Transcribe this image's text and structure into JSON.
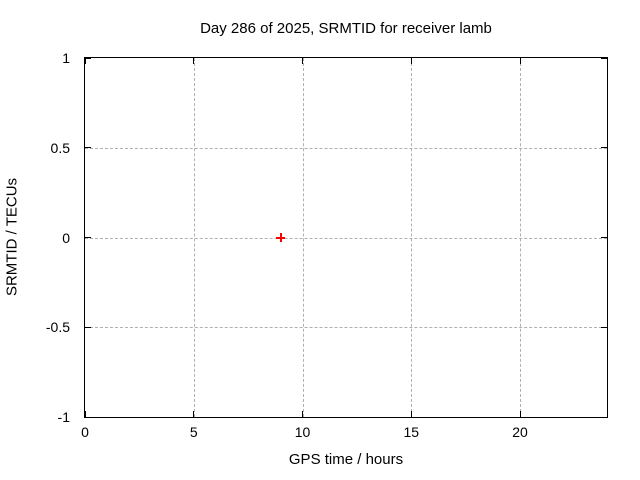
{
  "chart_data": {
    "type": "scatter",
    "title": "Day 286 of 2025, SRMTID for receiver lamb",
    "xlabel": "GPS time / hours",
    "ylabel": "SRMTID / TECUs",
    "xlim": [
      0,
      24
    ],
    "ylim": [
      -1,
      1
    ],
    "xtick_values": [
      0,
      5,
      10,
      15,
      20
    ],
    "xtick_labels": [
      "0",
      "5",
      "10",
      "15",
      "20"
    ],
    "ytick_values": [
      -1,
      -0.5,
      0,
      0.5,
      1
    ],
    "ytick_labels": [
      "-1",
      "-0.5",
      "0",
      "0.5",
      "1"
    ],
    "grid": true,
    "legend": "none",
    "grid_color": "#b0b0b0",
    "border_color": "#000000",
    "background_color": "#ffffff",
    "series": [
      {
        "name": "SRMTID",
        "marker": "plus",
        "color": "#ff0000",
        "points": [
          {
            "x": 9,
            "y": 0
          }
        ]
      }
    ]
  }
}
